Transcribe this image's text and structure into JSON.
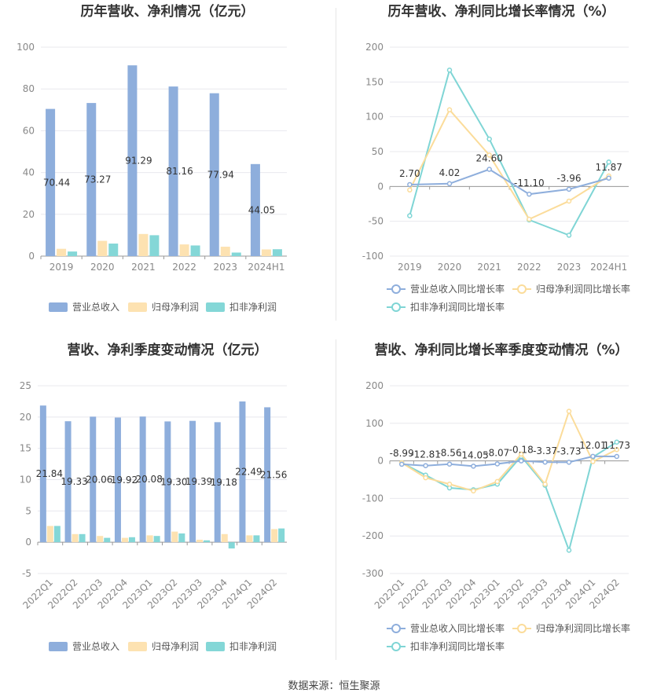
{
  "footer": {
    "source": "数据来源：恒生聚源"
  },
  "colors": {
    "revenue": "#8eaedc",
    "parent_profit": "#fde2b1",
    "deducted_profit": "#84d7d7",
    "revenue_line": "#8eaedc",
    "parent_line": "#fbdc9a",
    "deducted_line": "#7fd5d5",
    "grid": "#e8e8ee",
    "axis_text": "#888888",
    "title": "#333333"
  },
  "chart_data": [
    {
      "type": "bar",
      "title": "历年营收、净利情况（亿元）",
      "categories": [
        "2019",
        "2020",
        "2021",
        "2022",
        "2023",
        "2024H1"
      ],
      "ylim": [
        0,
        100
      ],
      "yticks": [
        "0",
        "20",
        "40",
        "60",
        "80",
        "100"
      ],
      "series": [
        {
          "name": "营业总收入",
          "values": [
            70.44,
            73.27,
            91.29,
            81.16,
            77.94,
            44.05
          ],
          "labels": [
            "70.44",
            "73.27",
            "91.29",
            "81.16",
            "77.94",
            "44.05"
          ]
        },
        {
          "name": "归母净利润",
          "values": [
            3.5,
            7.3,
            10.6,
            5.6,
            4.5,
            3.2
          ]
        },
        {
          "name": "扣非净利润",
          "values": [
            2.2,
            6.0,
            10.0,
            5.1,
            1.7,
            3.3
          ]
        }
      ],
      "legend": "bottom"
    },
    {
      "type": "line",
      "title": "历年营收、净利同比增长率情况（%）",
      "categories": [
        "2019",
        "2020",
        "2021",
        "2022",
        "2023",
        "2024H1"
      ],
      "ylim": [
        -100,
        200
      ],
      "yticks": [
        "-100",
        "-50",
        "0",
        "50",
        "100",
        "150",
        "200"
      ],
      "series": [
        {
          "name": "营业总收入同比增长率",
          "values": [
            2.7,
            4.02,
            24.6,
            -11.1,
            -3.96,
            11.87
          ],
          "labels": [
            "2.70",
            "4.02",
            "24.60",
            "-11.10",
            "-3.96",
            "11.87"
          ]
        },
        {
          "name": "归母净利润同比增长率",
          "values": [
            -5,
            110,
            45,
            -47,
            -21,
            15
          ]
        },
        {
          "name": "扣非净利润同比增长率",
          "values": [
            -42,
            167,
            68,
            -48,
            -70,
            35
          ]
        }
      ],
      "legend": "bottom"
    },
    {
      "type": "bar",
      "title": "营收、净利季度变动情况（亿元）",
      "categories": [
        "2022Q1",
        "2022Q2",
        "2022Q3",
        "2022Q4",
        "2023Q1",
        "2023Q2",
        "2023Q3",
        "2023Q4",
        "2024Q1",
        "2024Q2"
      ],
      "ylim": [
        -5,
        25
      ],
      "yticks": [
        "-5",
        "0",
        "5",
        "10",
        "15",
        "20",
        "25"
      ],
      "series": [
        {
          "name": "营业总收入",
          "values": [
            21.84,
            19.33,
            20.06,
            19.92,
            20.08,
            19.3,
            19.39,
            19.18,
            22.49,
            21.56
          ],
          "labels": [
            "21.84",
            "19.33",
            "20.06",
            "19.92",
            "20.08",
            "19.30",
            "19.39",
            "19.18",
            "22.49",
            "21.56"
          ]
        },
        {
          "name": "归母净利润",
          "values": [
            2.6,
            1.3,
            1.0,
            0.7,
            1.1,
            1.7,
            0.4,
            1.3,
            1.1,
            2.1
          ]
        },
        {
          "name": "扣非净利润",
          "values": [
            2.6,
            1.3,
            0.7,
            0.8,
            1.0,
            1.4,
            0.3,
            -1.0,
            1.1,
            2.2
          ]
        }
      ],
      "legend": "bottom"
    },
    {
      "type": "line",
      "title": "营收、净利同比增长率季度变动情况（%）",
      "categories": [
        "2022Q1",
        "2022Q2",
        "2022Q3",
        "2022Q4",
        "2023Q1",
        "2023Q2",
        "2023Q3",
        "2023Q4",
        "2024Q1",
        "2024Q2"
      ],
      "ylim": [
        -300,
        200
      ],
      "yticks": [
        "-300",
        "-200",
        "-100",
        "0",
        "100",
        "200"
      ],
      "series": [
        {
          "name": "营业总收入同比增长率",
          "values": [
            -8.99,
            -12.81,
            -8.56,
            -14.05,
            -8.07,
            -0.18,
            -3.37,
            -3.73,
            12.01,
            11.73
          ],
          "labels": [
            "-8.99",
            "-12.81",
            "-8.56",
            "-14.05",
            "-8.07",
            "-0.18",
            "-3.37",
            "-3.73",
            "12.01",
            "11.73"
          ]
        },
        {
          "name": "归母净利润同比增长率",
          "values": [
            -5,
            -45,
            -62,
            -80,
            -55,
            18,
            -62,
            132,
            -2,
            30
          ]
        },
        {
          "name": "扣非净利润同比增长率",
          "values": [
            -5,
            -38,
            -72,
            -77,
            -62,
            12,
            -65,
            -238,
            10,
            50
          ]
        }
      ],
      "legend": "bottom"
    }
  ]
}
